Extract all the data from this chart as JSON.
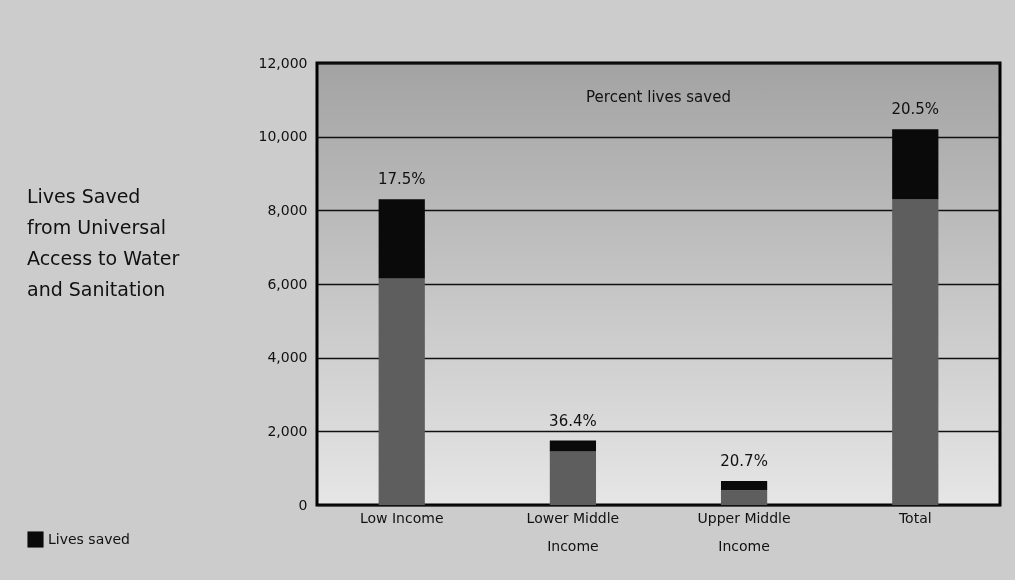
{
  "chart_data": {
    "type": "bar",
    "stacked": true,
    "ylabel": "Lives Saved from Universal Access to Water and Sanitation",
    "categories": [
      "Low Income",
      "Lower Middle Income",
      "Upper Middle Income",
      "Total"
    ],
    "series": [
      {
        "color": "#5e5e5e",
        "values": [
          6150,
          1450,
          400,
          8300
        ]
      },
      {
        "name": "Lives saved",
        "color": "#0a0a0a",
        "values": [
          2150,
          300,
          250,
          1900
        ]
      }
    ],
    "ylim": [
      0,
      12000
    ],
    "yticks": [
      0,
      {
        "value": 2000,
        "label": "2,000"
      },
      {
        "value": 4000,
        "label": "4,000"
      },
      {
        "value": 6000,
        "label": "6,000"
      },
      {
        "value": 8000,
        "label": "8,000"
      },
      {
        "value": 10000,
        "label": "10,000"
      },
      {
        "value": 12000,
        "label": "12,000"
      }
    ],
    "grid": "y",
    "legend": "bottom left",
    "annotations": [
      "Percent lives saved",
      {
        "text": "17.5%",
        "x": "Low Income",
        "y": 8300
      },
      {
        "text": "36.4%",
        "x": "Lower Middle Income",
        "y": 1750
      },
      {
        "text": "20.7%",
        "x": "Upper Middle Income",
        "y": 650
      },
      {
        "text": "20.5%",
        "x": "Total",
        "y": 10200
      }
    ]
  }
}
